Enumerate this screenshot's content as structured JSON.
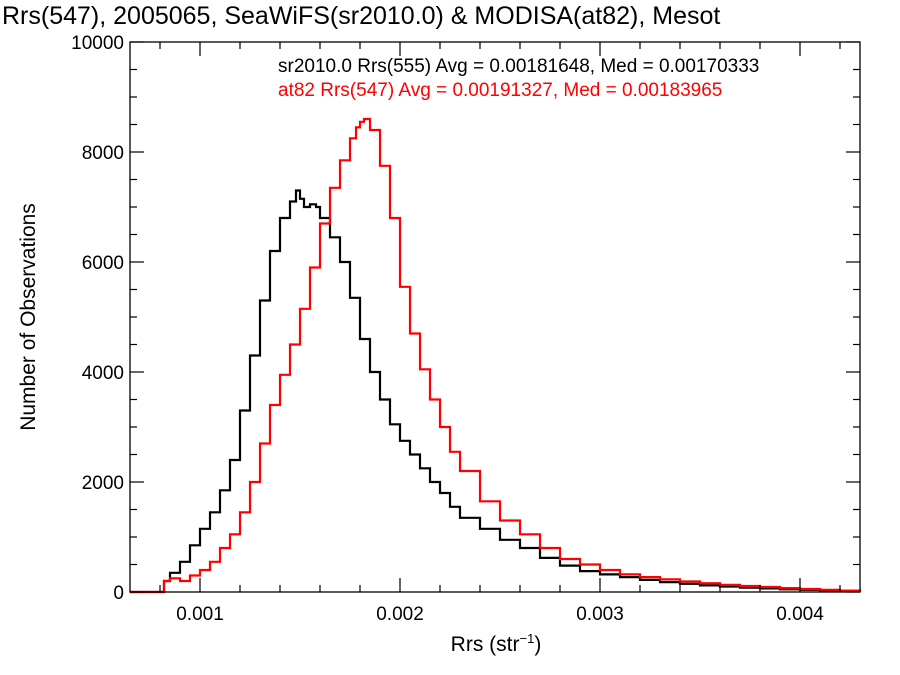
{
  "chart_data": {
    "type": "line",
    "title": "Rrs(547), 2005065, SeaWiFS(sr2010.0) & MODISA(at82), Mesot",
    "xlabel_base": "Rrs (str",
    "xlabel_sup": "−1",
    "xlabel_close": ")",
    "ylabel": "Number of Observations",
    "xlim": [
      0.00065,
      0.0043
    ],
    "ylim": [
      0,
      10000
    ],
    "xticks": [
      0.001,
      0.002,
      0.003,
      0.004
    ],
    "xtick_labels": [
      "0.001",
      "0.002",
      "0.003",
      "0.004"
    ],
    "yticks": [
      0,
      2000,
      4000,
      6000,
      8000,
      10000
    ],
    "ytick_labels": [
      "0",
      "2000",
      "4000",
      "6000",
      "8000",
      "10000"
    ],
    "grid": false,
    "legend_position": "top-right",
    "series": [
      {
        "name": "sr2010.0 Rrs(555) Avg = 0.00181648, Med = 0.00170333",
        "color": "#000000",
        "x": [
          0.00065,
          0.0008,
          0.00082,
          0.00085,
          0.0009,
          0.00095,
          0.001,
          0.00105,
          0.0011,
          0.00115,
          0.0012,
          0.00125,
          0.0013,
          0.00135,
          0.0014,
          0.00145,
          0.00148,
          0.0015,
          0.00152,
          0.00155,
          0.00158,
          0.0016,
          0.00165,
          0.0017,
          0.00175,
          0.0018,
          0.00185,
          0.0019,
          0.00195,
          0.002,
          0.00205,
          0.0021,
          0.00215,
          0.0022,
          0.00225,
          0.0023,
          0.0024,
          0.0025,
          0.0026,
          0.0027,
          0.0028,
          0.0029,
          0.003,
          0.0031,
          0.0032,
          0.0033,
          0.0034,
          0.0035,
          0.0036,
          0.0037,
          0.0038,
          0.0039,
          0.004,
          0.0041,
          0.0042,
          0.0043
        ],
        "y": [
          0,
          0,
          200,
          350,
          550,
          850,
          1150,
          1450,
          1850,
          2400,
          3300,
          4300,
          5300,
          6200,
          6800,
          7100,
          7300,
          7150,
          7000,
          7050,
          7000,
          6800,
          6450,
          6000,
          5350,
          4600,
          4000,
          3500,
          3050,
          2750,
          2500,
          2250,
          2000,
          1800,
          1550,
          1350,
          1150,
          950,
          800,
          620,
          480,
          380,
          320,
          270,
          220,
          180,
          150,
          120,
          100,
          80,
          65,
          50,
          40,
          30,
          20,
          10
        ]
      },
      {
        "name": "at82 Rrs(547) Avg = 0.00191327, Med = 0.00183965",
        "color": "#ff0000",
        "x": [
          0.00065,
          0.0008,
          0.00082,
          0.00085,
          0.0009,
          0.00095,
          0.001,
          0.00105,
          0.0011,
          0.00115,
          0.0012,
          0.00125,
          0.0013,
          0.00135,
          0.0014,
          0.00145,
          0.0015,
          0.00155,
          0.0016,
          0.00165,
          0.0017,
          0.00175,
          0.00178,
          0.0018,
          0.00182,
          0.00185,
          0.0019,
          0.00195,
          0.002,
          0.00205,
          0.0021,
          0.00215,
          0.0022,
          0.00225,
          0.0023,
          0.0024,
          0.0025,
          0.0026,
          0.0027,
          0.0028,
          0.0029,
          0.003,
          0.0031,
          0.0032,
          0.0033,
          0.0034,
          0.0035,
          0.0036,
          0.0037,
          0.0038,
          0.0039,
          0.004,
          0.0041,
          0.0042,
          0.0043
        ],
        "y": [
          0,
          0,
          200,
          250,
          200,
          300,
          400,
          550,
          800,
          1050,
          1450,
          2000,
          2700,
          3400,
          3950,
          4500,
          5150,
          5900,
          6700,
          7350,
          7850,
          8250,
          8450,
          8550,
          8600,
          8400,
          7750,
          6800,
          5550,
          4700,
          4050,
          3500,
          3000,
          2550,
          2200,
          1650,
          1300,
          1050,
          800,
          600,
          500,
          400,
          320,
          270,
          230,
          190,
          160,
          130,
          110,
          90,
          70,
          55,
          40,
          25,
          10
        ]
      }
    ]
  }
}
